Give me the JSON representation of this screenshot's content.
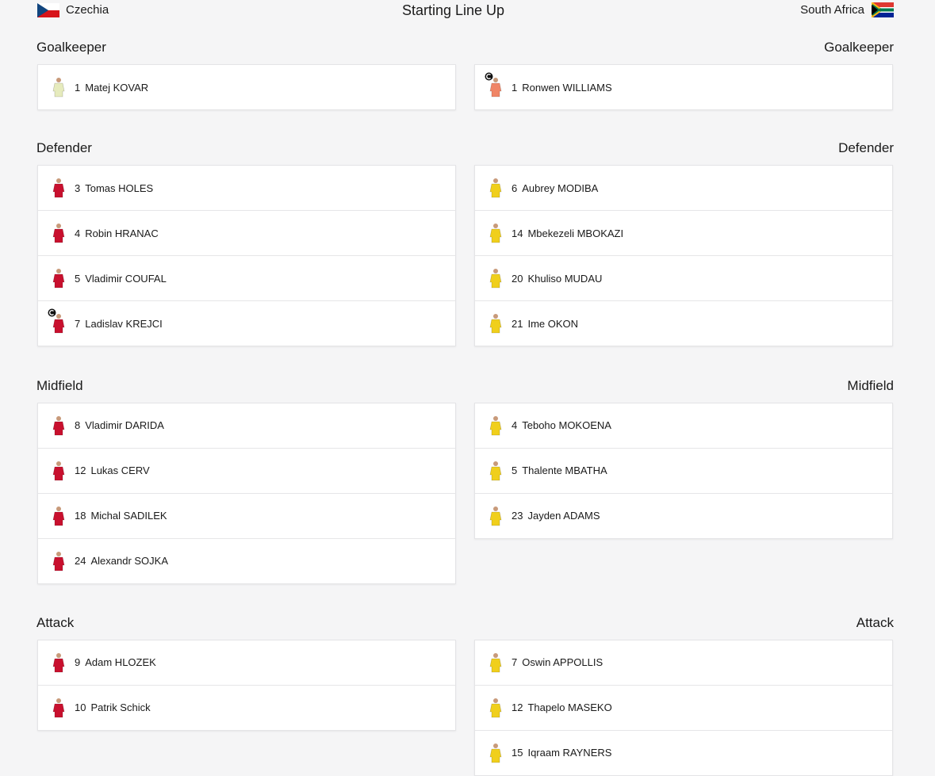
{
  "header": {
    "title": "Starting Line Up",
    "home": "Czechia",
    "away": "South Africa"
  },
  "kits": {
    "home": {
      "outfield": "#c8102e",
      "goalkeeper": "#e6ebbd"
    },
    "away": {
      "outfield": "#f0cf1c",
      "goalkeeper": "#f08566"
    }
  },
  "sections": [
    {
      "label": "Goalkeeper",
      "home": [
        {
          "number": 1,
          "name": "Matej KOVAR"
        }
      ],
      "away": [
        {
          "number": 1,
          "name": "Ronwen WILLIAMS",
          "captain": true
        }
      ]
    },
    {
      "label": "Defender",
      "home": [
        {
          "number": 3,
          "name": "Tomas HOLES"
        },
        {
          "number": 4,
          "name": "Robin HRANAC"
        },
        {
          "number": 5,
          "name": "Vladimir COUFAL"
        },
        {
          "number": 7,
          "name": "Ladislav KREJCI",
          "captain": true
        }
      ],
      "away": [
        {
          "number": 6,
          "name": "Aubrey MODIBA"
        },
        {
          "number": 14,
          "name": "Mbekezeli MBOKAZI"
        },
        {
          "number": 20,
          "name": "Khuliso MUDAU"
        },
        {
          "number": 21,
          "name": "Ime OKON"
        }
      ]
    },
    {
      "label": "Midfield",
      "home": [
        {
          "number": 8,
          "name": "Vladimir DARIDA"
        },
        {
          "number": 12,
          "name": "Lukas CERV"
        },
        {
          "number": 18,
          "name": "Michal SADILEK"
        },
        {
          "number": 24,
          "name": "Alexandr SOJKA"
        }
      ],
      "away": [
        {
          "number": 4,
          "name": "Teboho MOKOENA"
        },
        {
          "number": 5,
          "name": "Thalente MBATHA"
        },
        {
          "number": 23,
          "name": "Jayden ADAMS"
        }
      ]
    },
    {
      "label": "Attack",
      "home": [
        {
          "number": 9,
          "name": "Adam HLOZEK"
        },
        {
          "number": 10,
          "name": "Patrik Schick"
        }
      ],
      "away": [
        {
          "number": 7,
          "name": "Oswin APPOLLIS"
        },
        {
          "number": 12,
          "name": "Thapelo MASEKO"
        },
        {
          "number": 15,
          "name": "Iqraam RAYNERS"
        }
      ]
    }
  ]
}
